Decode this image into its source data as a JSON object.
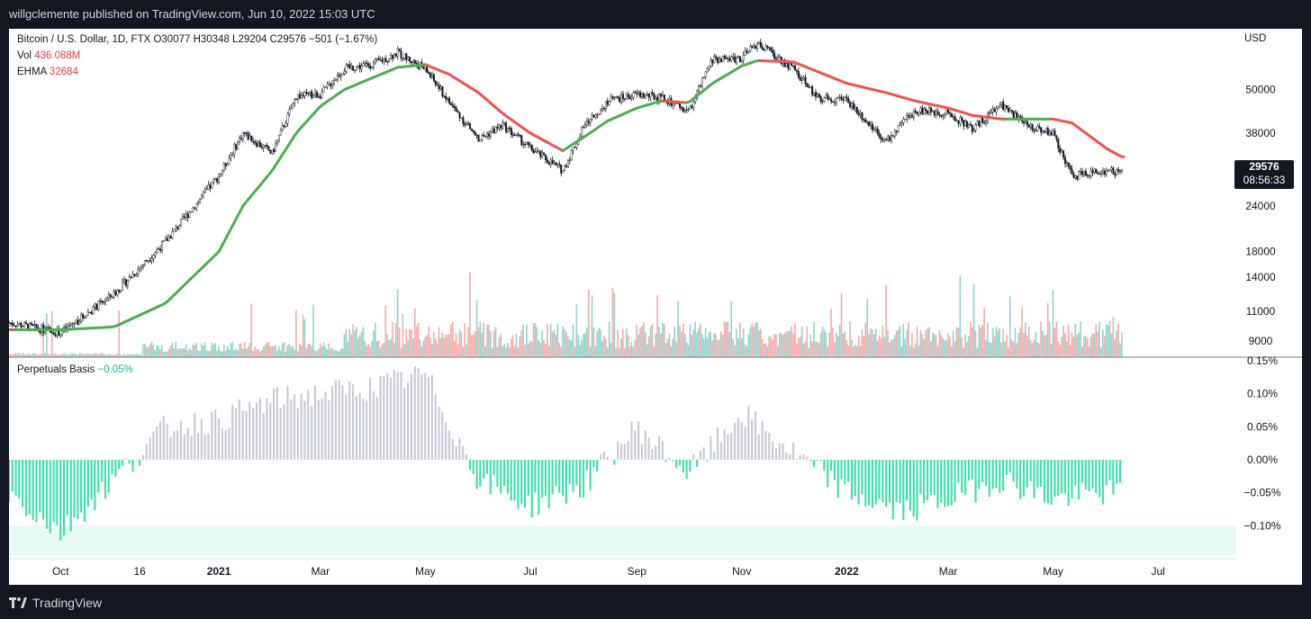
{
  "header": {
    "publisher_line": "willgclemente published on TradingView.com, Jun 10, 2022 15:03 UTC"
  },
  "footer": {
    "brand": "TradingView"
  },
  "legend": {
    "symbol_line": "Bitcoin / U.S. Dollar, 1D, FTX  O30077  H30348  L29204  C29576  −501 (−1.67%)",
    "vol_label": "Vol",
    "vol_value": "436.088M",
    "ehma_label": "EHMA",
    "ehma_value": "32684",
    "basis_label": "Perpetuals Basis",
    "basis_value": "−0.05%"
  },
  "price_scale": {
    "currency": "USD",
    "ticks": [
      "50000",
      "38000",
      "24000",
      "18000",
      "14000",
      "11000",
      "9000"
    ]
  },
  "basis_scale": {
    "ticks": [
      "0.15%",
      "0.10%",
      "0.05%",
      "0.00%",
      "−0.05%",
      "−0.10%"
    ]
  },
  "last_price": {
    "price": "29576",
    "countdown": "08:56:33"
  },
  "time_axis": {
    "labels": [
      "Oct",
      "16",
      "2021",
      "Mar",
      "May",
      "Jul",
      "Sep",
      "Nov",
      "2022",
      "Mar",
      "May",
      "Jul"
    ],
    "bold": [
      "2021",
      "2022"
    ]
  },
  "colors": {
    "candle": "#131722",
    "ehma_up": "#4caf50",
    "ehma_down": "#f05350",
    "vol_up": "#26a69a",
    "vol_down": "#ef5350",
    "basis_pos": "#c9cbd6",
    "basis_neg": "#42e0ad",
    "band": "#e8faf4"
  },
  "chart_data": [
    {
      "type": "line",
      "title": "Bitcoin / U.S. Dollar, 1D, FTX",
      "ylabel": "USD",
      "y_scale": "log",
      "ylim": [
        8500,
        75000
      ],
      "x": [
        "2020-09-01",
        "2020-10-01",
        "2020-11-01",
        "2020-12-01",
        "2021-01-01",
        "2021-01-15",
        "2021-02-01",
        "2021-02-15",
        "2021-03-01",
        "2021-03-15",
        "2021-04-01",
        "2021-04-15",
        "2021-05-01",
        "2021-05-15",
        "2021-06-01",
        "2021-06-15",
        "2021-07-01",
        "2021-07-20",
        "2021-08-01",
        "2021-08-15",
        "2021-09-01",
        "2021-09-15",
        "2021-10-01",
        "2021-10-15",
        "2021-11-01",
        "2021-11-10",
        "2021-12-01",
        "2021-12-15",
        "2022-01-01",
        "2022-01-24",
        "2022-02-10",
        "2022-03-01",
        "2022-03-15",
        "2022-04-01",
        "2022-04-15",
        "2022-05-01",
        "2022-05-12",
        "2022-06-01",
        "2022-06-10"
      ],
      "series": [
        {
          "name": "Bitcoin / U.S. Dollar",
          "values": [
            11500,
            10800,
            13800,
            19200,
            29000,
            38000,
            33500,
            48000,
            48500,
            57000,
            58800,
            63000,
            57000,
            46000,
            36500,
            40000,
            34500,
            30000,
            39500,
            46500,
            48500,
            47500,
            43500,
            60500,
            61000,
            67000,
            57000,
            47500,
            47000,
            36000,
            44000,
            43000,
            39000,
            45500,
            40000,
            38000,
            29000,
            30000,
            29576
          ]
        },
        {
          "name": "EHMA",
          "values": [
            11000,
            11000,
            11200,
            13000,
            18000,
            24000,
            30000,
            38000,
            45000,
            50000,
            54000,
            57500,
            58500,
            55000,
            49000,
            43000,
            38000,
            34000,
            37000,
            41000,
            44500,
            46500,
            46000,
            52000,
            58000,
            60000,
            59500,
            56000,
            52000,
            49000,
            46500,
            44500,
            42500,
            41500,
            41500,
            41500,
            40500,
            34500,
            32684
          ]
        }
      ]
    },
    {
      "type": "bar",
      "title": "Vol",
      "values_note_unit": "USD volume",
      "last_value": 436088000
    },
    {
      "type": "bar",
      "title": "Perpetuals Basis",
      "ylabel": "%",
      "ylim": [
        -0.15,
        0.15
      ],
      "x": [
        "2020-09-01",
        "2020-10-01",
        "2020-11-01",
        "2020-12-01",
        "2021-01-01",
        "2021-02-01",
        "2021-03-01",
        "2021-04-01",
        "2021-05-01",
        "2021-06-01",
        "2021-07-01",
        "2021-08-01",
        "2021-09-01",
        "2021-10-01",
        "2021-11-01",
        "2021-12-01",
        "2022-01-01",
        "2022-02-01",
        "2022-03-01",
        "2022-04-01",
        "2022-05-01",
        "2022-06-01"
      ],
      "values": [
        -0.05,
        -0.11,
        -0.03,
        0.05,
        0.06,
        0.09,
        0.1,
        0.11,
        0.13,
        -0.03,
        -0.07,
        -0.04,
        0.05,
        -0.02,
        0.07,
        0.01,
        -0.05,
        -0.08,
        -0.06,
        -0.03,
        -0.06,
        -0.05
      ]
    }
  ]
}
